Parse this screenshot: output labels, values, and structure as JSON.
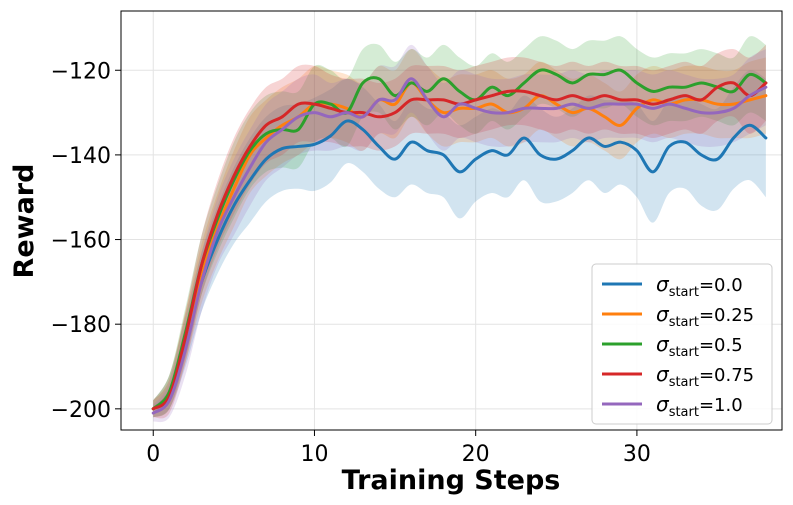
{
  "chart_data": {
    "type": "line",
    "title": "",
    "xlabel": "Training Steps",
    "ylabel": "Reward",
    "xlim": [
      -2,
      39
    ],
    "ylim": [
      -205,
      -106
    ],
    "xticks": [
      0,
      10,
      20,
      30
    ],
    "xtick_labels": [
      "0",
      "10",
      "20",
      "30"
    ],
    "yticks": [
      -200,
      -180,
      -160,
      -140,
      -120
    ],
    "ytick_labels": [
      "−200",
      "−180",
      "−160",
      "−140",
      "−120"
    ],
    "grid": true,
    "legend_position": "lower-right",
    "x": [
      0,
      1,
      2,
      3,
      4,
      5,
      6,
      7,
      8,
      9,
      10,
      11,
      12,
      13,
      14,
      15,
      16,
      17,
      18,
      19,
      20,
      21,
      22,
      23,
      24,
      25,
      26,
      27,
      28,
      29,
      30,
      31,
      32,
      33,
      34,
      35,
      36,
      37,
      38
    ],
    "series": [
      {
        "name": "0.0",
        "legend_label": "=0.0",
        "color": "#1f77b4",
        "values": [
          -200,
          -196,
          -184,
          -170,
          -160,
          -152,
          -146,
          -141,
          -138.5,
          -138,
          -137.5,
          -135.5,
          -132,
          -134,
          -138,
          -141,
          -137,
          -139,
          -140,
          -144,
          -141,
          -139,
          -140,
          -136,
          -140,
          -141,
          -139,
          -136,
          -138,
          -137,
          -139,
          -144,
          -138,
          -137,
          -140,
          -141,
          -136,
          -133,
          -136
        ],
        "band": [
          2,
          4,
          6,
          7,
          8,
          9,
          10,
          10,
          10,
          10,
          11,
          11,
          10,
          10,
          10,
          9,
          10,
          10,
          10,
          11,
          10,
          10,
          10,
          10,
          11,
          10,
          10,
          10,
          11,
          10,
          11,
          12,
          11,
          11,
          12,
          12,
          12,
          13,
          14
        ]
      },
      {
        "name": "0.25",
        "legend_label": "=0.25",
        "color": "#ff7f0e",
        "values": [
          -200,
          -196,
          -183,
          -168,
          -157,
          -148,
          -140,
          -136,
          -133,
          -131,
          -128,
          -128,
          -129,
          -131,
          -127,
          -128,
          -123,
          -127,
          -130,
          -129,
          -129,
          -128,
          -130,
          -129,
          -126,
          -128,
          -130,
          -129,
          -131,
          -133,
          -129,
          -127,
          -128,
          -127,
          -127,
          -128,
          -128,
          -127,
          -126
        ],
        "band": [
          2,
          4,
          6,
          7,
          8,
          9,
          9,
          9,
          9,
          9,
          9,
          8,
          8,
          8,
          8,
          8,
          8,
          8,
          8,
          8,
          8,
          8,
          8,
          8,
          8,
          8,
          8,
          8,
          8,
          8,
          8,
          8,
          8,
          8,
          8,
          8,
          8,
          9,
          9
        ]
      },
      {
        "name": "0.5",
        "legend_label": "=0.5",
        "color": "#2ca02c",
        "values": [
          -200,
          -196,
          -182,
          -166,
          -155,
          -146,
          -139,
          -135,
          -134,
          -134,
          -128,
          -128,
          -130,
          -123,
          -122,
          -126,
          -123,
          -125,
          -122,
          -125,
          -127,
          -124,
          -126,
          -123,
          -120,
          -121,
          -123,
          -121,
          -121,
          -120,
          -123,
          -125,
          -124,
          -124,
          -123,
          -124,
          -125,
          -121,
          -123
        ],
        "band": [
          2,
          4,
          6,
          7,
          8,
          9,
          9,
          9,
          9,
          9,
          9,
          8,
          8,
          8,
          8,
          8,
          8,
          8,
          8,
          8,
          8,
          8,
          8,
          8,
          8,
          8,
          8,
          8,
          8,
          8,
          8,
          8,
          8,
          8,
          8,
          8,
          8,
          9,
          9
        ]
      },
      {
        "name": "0.75",
        "legend_label": "=0.75",
        "color": "#d62728",
        "values": [
          -200,
          -197,
          -183,
          -166,
          -154,
          -145,
          -138,
          -133,
          -131,
          -128,
          -128,
          -129,
          -130,
          -130,
          -131,
          -130,
          -127,
          -127,
          -127,
          -128,
          -127,
          -126,
          -125,
          -125,
          -126,
          -127,
          -126,
          -127,
          -126,
          -127,
          -127,
          -128,
          -127,
          -126,
          -127,
          -124,
          -123,
          -126,
          -123
        ],
        "band": [
          2,
          4,
          6,
          7,
          8,
          9,
          9,
          9,
          9,
          9,
          9,
          8,
          8,
          8,
          8,
          8,
          8,
          8,
          8,
          8,
          8,
          8,
          8,
          8,
          8,
          8,
          8,
          8,
          8,
          8,
          8,
          8,
          8,
          8,
          8,
          8,
          8,
          9,
          9
        ]
      },
      {
        "name": "1.0",
        "legend_label": "=1.0",
        "color": "#9467bd",
        "values": [
          -201,
          -198,
          -186,
          -170,
          -158,
          -150,
          -143,
          -137,
          -134,
          -131,
          -130,
          -131,
          -130,
          -131,
          -127,
          -127,
          -122,
          -127,
          -131,
          -128,
          -129,
          -130,
          -130,
          -129,
          -129,
          -129,
          -128,
          -129,
          -128,
          -128,
          -128,
          -129,
          -128,
          -129,
          -130,
          -130,
          -129,
          -126,
          -124
        ],
        "band": [
          2,
          4,
          6,
          7,
          8,
          9,
          9,
          9,
          9,
          9,
          9,
          8,
          8,
          8,
          8,
          8,
          8,
          8,
          8,
          8,
          8,
          8,
          8,
          8,
          8,
          8,
          8,
          8,
          8,
          8,
          8,
          8,
          8,
          8,
          8,
          8,
          8,
          9,
          9
        ]
      }
    ],
    "legend_symbol": "σ",
    "legend_subscript": "start"
  }
}
